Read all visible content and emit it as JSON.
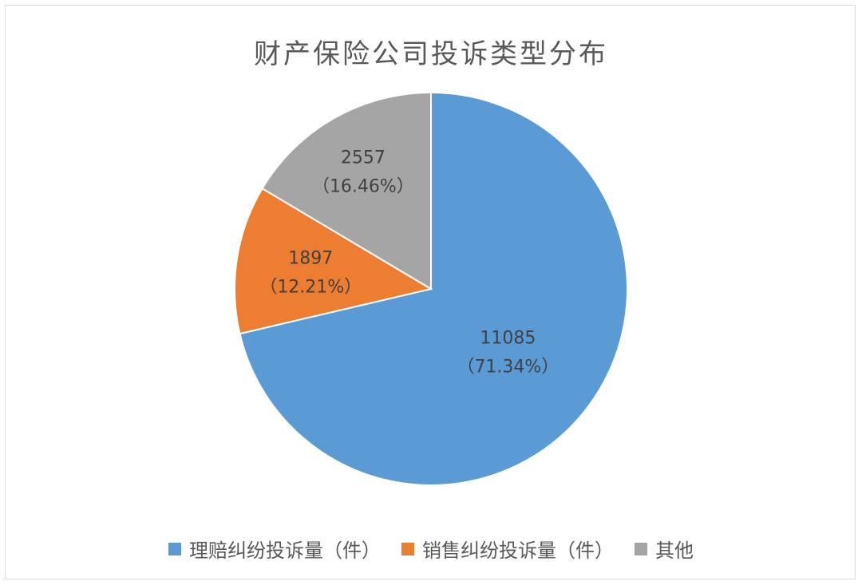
{
  "chart_data": {
    "type": "pie",
    "title": "财产保险公司投诉类型分布",
    "slices": [
      {
        "name": "理赔纠纷投诉量（件）",
        "value": 11085,
        "value_label": "11085",
        "percent_label": "（71.34%）",
        "color": "#5b9bd5"
      },
      {
        "name": "销售纠纷投诉量（件）",
        "value": 1897,
        "value_label": "1897",
        "percent_label": "（12.21%）",
        "color": "#ed7d31"
      },
      {
        "name": "其他",
        "value": 2557,
        "value_label": "2557",
        "percent_label": "（16.46%）",
        "color": "#a5a5a5"
      }
    ],
    "legend_position": "bottom"
  }
}
